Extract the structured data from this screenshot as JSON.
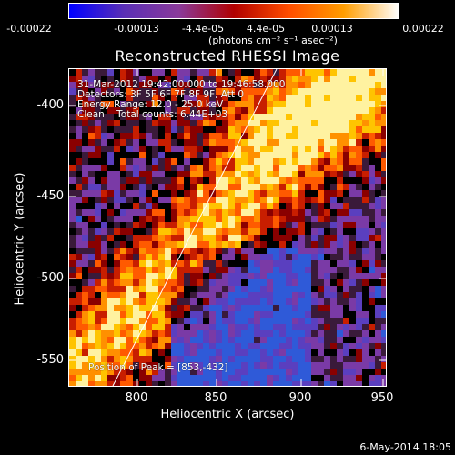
{
  "colorbar": {
    "tick_labels": [
      "-0.00022",
      "-0.00013",
      "-4.4e-05",
      "4.4e-05",
      "0.00013",
      "0.00022"
    ],
    "unit": "(photons cm⁻² s⁻¹ asec⁻²)",
    "colors": [
      "#0000ff",
      "#5a2fb5",
      "#8a3a9a",
      "#b00000",
      "#ff4d00",
      "#ff9d00",
      "#ffffff"
    ]
  },
  "title": "Reconstructed RHESSI Image",
  "annotations": {
    "time_range": "31-Mar-2012 19:42:00.000 to 19:46:58.000",
    "detectors": "Detectors: 3F 5F 6F 7F 8F 9F, Att 0",
    "energy": "Energy Range: 12.0 - 25.0 keV",
    "method": "Clean    Total counts: 6.44E+03",
    "peak": "Position of Peak = [853,-432]"
  },
  "axes": {
    "xlabel": "Heliocentric X (arcsec)",
    "ylabel": "Heliocentric Y (arcsec)",
    "xticks": [
      "800",
      "850",
      "900",
      "950"
    ],
    "yticks": [
      "-400",
      "-450",
      "-500",
      "-550"
    ]
  },
  "date_stamp": "6-May-2014 18:05"
}
